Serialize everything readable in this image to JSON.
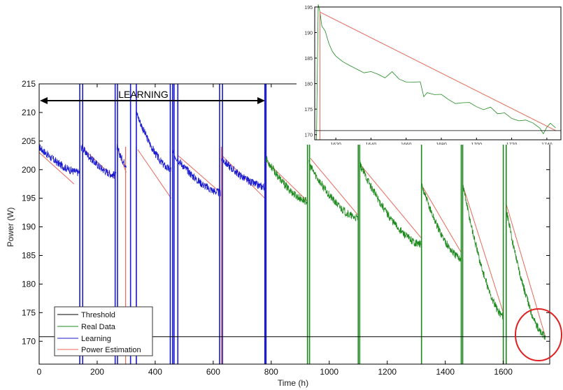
{
  "chart_data": [
    {
      "type": "line",
      "xlabel": "Time (h)",
      "ylabel": "Power (W)",
      "xlim": [
        0,
        1760
      ],
      "ylim": [
        166,
        215
      ],
      "x_ticks": [
        0,
        200,
        400,
        600,
        800,
        1000,
        1200,
        1400,
        1600
      ],
      "y_ticks": [
        170,
        175,
        180,
        185,
        190,
        195,
        200,
        205,
        210,
        215
      ],
      "grid": false,
      "legend_position": "bottom-left",
      "annotations": [
        {
          "text": "LEARNING",
          "type": "double-arrow",
          "x_range": [
            0,
            780
          ],
          "y": 212
        },
        {
          "type": "circle",
          "color": "#e02020",
          "center": [
            1720,
            172
          ]
        }
      ],
      "series": [
        {
          "name": "Threshold",
          "color": "#000000",
          "style": "horizontal-line",
          "y": 170.8
        },
        {
          "name": "Learning",
          "color": "#1a1ad0",
          "cycles": [
            {
              "x_start": 0,
              "x_end": 140,
              "y_start": 204,
              "y_end": 199.5
            },
            {
              "x_start": 145,
              "x_end": 265,
              "y_start": 204,
              "y_end": 199
            },
            {
              "x_start": 268,
              "x_end": 300,
              "y_start": 204,
              "y_end": 201
            },
            {
              "x_start": 335,
              "x_end": 455,
              "y_start": 210,
              "y_end": 200
            },
            {
              "x_start": 460,
              "x_end": 625,
              "y_start": 203,
              "y_end": 196
            },
            {
              "x_start": 628,
              "x_end": 778,
              "y_start": 202,
              "y_end": 197
            }
          ],
          "spikes_x": [
            140,
            150,
            262,
            270,
            315,
            335,
            452,
            460,
            465,
            478,
            622,
            632,
            778,
            782
          ]
        },
        {
          "name": "Real Data",
          "color": "#1e8a1e",
          "cycles": [
            {
              "x_start": 782,
              "x_end": 925,
              "y_start": 202,
              "y_end": 194.5
            },
            {
              "x_start": 930,
              "x_end": 1100,
              "y_start": 201,
              "y_end": 191.5
            },
            {
              "x_start": 1105,
              "x_end": 1315,
              "y_start": 201,
              "y_end": 187
            },
            {
              "x_start": 1320,
              "x_end": 1455,
              "y_start": 197,
              "y_end": 184.5
            },
            {
              "x_start": 1462,
              "x_end": 1600,
              "y_start": 197,
              "y_end": 174.5
            },
            {
              "x_start": 1610,
              "x_end": 1745,
              "y_start": 193,
              "y_end": 170.8
            }
          ],
          "spikes_x": [
            925,
            932,
            1100,
            1105,
            1318,
            1455,
            1460,
            1600,
            1610
          ]
        },
        {
          "name": "Power Estimation",
          "color": "#e8685a",
          "segments": [
            {
              "x": [
                0,
                120
              ],
              "y": [
                203,
                197.5
              ]
            },
            {
              "x": [
                145,
                260
              ],
              "y": [
                204,
                198.5
              ]
            },
            {
              "x": [
                268,
                300
              ],
              "y": [
                204,
                199.5
              ]
            },
            {
              "x": [
                340,
                455
              ],
              "y": [
                203.5,
                195
              ]
            },
            {
              "x": [
                478,
                625
              ],
              "y": [
                202.5,
                196
              ]
            },
            {
              "x": [
                630,
                778
              ],
              "y": [
                202.5,
                195
              ]
            },
            {
              "x": [
                782,
                925
              ],
              "y": [
                201.5,
                194.5
              ]
            },
            {
              "x": [
                935,
                1100
              ],
              "y": [
                202,
                192
              ]
            },
            {
              "x": [
                1105,
                1318
              ],
              "y": [
                201,
                188
              ]
            },
            {
              "x": [
                1322,
                1455
              ],
              "y": [
                197,
                185.5
              ]
            },
            {
              "x": [
                1462,
                1600
              ],
              "y": [
                197,
                175
              ]
            },
            {
              "x": [
                1610,
                1745
              ],
              "y": [
                194,
                170.8
              ]
            }
          ],
          "spikes_x": [
            298,
            335,
            478,
            628,
            780
          ]
        }
      ]
    },
    {
      "type": "line",
      "title": "",
      "xlim": [
        1608,
        1748
      ],
      "ylim": [
        169,
        195
      ],
      "x_ticks": [
        1620,
        1640,
        1660,
        1680,
        1700,
        1720,
        1740
      ],
      "y_ticks": [
        170,
        175,
        180,
        185,
        190,
        195
      ],
      "series": [
        {
          "name": "Threshold",
          "color": "#000000",
          "y": 170.8
        },
        {
          "name": "Real Data",
          "color": "#1e8a1e",
          "points": [
            [
              1609,
              169
            ],
            [
              1610,
              196
            ],
            [
              1611,
              194
            ],
            [
              1612,
              191
            ],
            [
              1614,
              190
            ],
            [
              1616,
              187.5
            ],
            [
              1618,
              186.5
            ],
            [
              1620,
              185
            ],
            [
              1624,
              184
            ],
            [
              1628,
              183.5
            ],
            [
              1632,
              183
            ],
            [
              1636,
              182.5
            ],
            [
              1640,
              182
            ],
            [
              1644,
              182
            ],
            [
              1648,
              181.5
            ],
            [
              1652,
              182
            ],
            [
              1656,
              181
            ],
            [
              1660,
              180.5
            ],
            [
              1664,
              180
            ],
            [
              1668,
              180
            ],
            [
              1670,
              177.8
            ],
            [
              1672,
              178.5
            ],
            [
              1676,
              178
            ],
            [
              1680,
              177.5
            ],
            [
              1684,
              177
            ],
            [
              1688,
              176.5
            ],
            [
              1692,
              176.5
            ],
            [
              1696,
              176
            ],
            [
              1700,
              175.5
            ],
            [
              1704,
              175
            ],
            [
              1708,
              175
            ],
            [
              1712,
              174.5
            ],
            [
              1716,
              174
            ],
            [
              1720,
              173.5
            ],
            [
              1724,
              173
            ],
            [
              1728,
              172.5
            ],
            [
              1732,
              172
            ],
            [
              1736,
              171.5
            ],
            [
              1738,
              170.5
            ],
            [
              1740,
              171.5
            ],
            [
              1742,
              172
            ],
            [
              1745,
              171
            ]
          ]
        },
        {
          "name": "Power Estimation",
          "color": "#e8685a",
          "points": [
            [
              1611,
              169
            ],
            [
              1611,
              194
            ],
            [
              1745,
              170.8
            ]
          ]
        }
      ]
    }
  ]
}
